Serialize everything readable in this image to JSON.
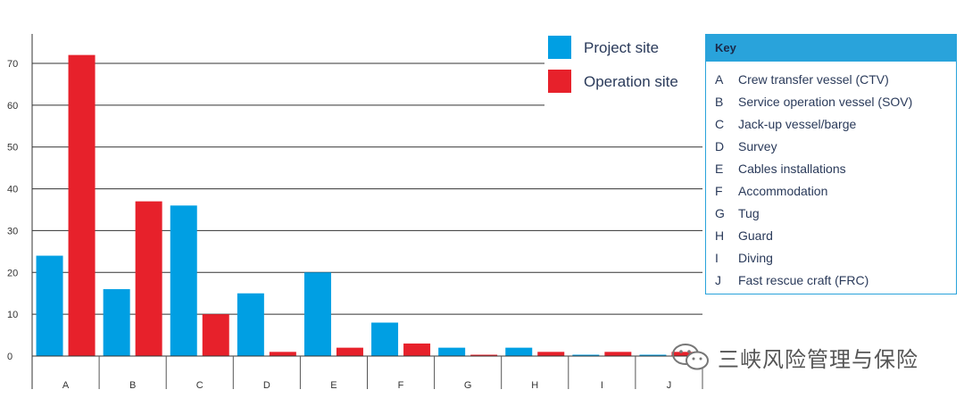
{
  "chart_data": {
    "type": "bar",
    "title": "",
    "xlabel": "",
    "ylabel": "",
    "ylim": [
      0,
      75
    ],
    "yticks": [
      0,
      10,
      20,
      30,
      40,
      50,
      60,
      70
    ],
    "categories": [
      "A",
      "B",
      "C",
      "D",
      "E",
      "F",
      "G",
      "H",
      "I",
      "J"
    ],
    "series": [
      {
        "name": "Project site",
        "color": "#009fe3",
        "values": [
          24,
          16,
          36,
          15,
          20,
          8,
          2,
          2,
          0,
          0
        ]
      },
      {
        "name": "Operation site",
        "color": "#e7212b",
        "values": [
          72,
          37,
          10,
          1,
          2,
          3,
          0,
          1,
          1,
          1
        ]
      }
    ],
    "grid": true,
    "legend_position": "top-right"
  },
  "key": {
    "title": "Key",
    "items": [
      {
        "letter": "A",
        "label": "Crew transfer vessel (CTV)"
      },
      {
        "letter": "B",
        "label": "Service operation vessel (SOV)"
      },
      {
        "letter": "C",
        "label": "Jack-up vessel/barge"
      },
      {
        "letter": "D",
        "label": "Survey"
      },
      {
        "letter": "E",
        "label": "Cables installations"
      },
      {
        "letter": "F",
        "label": "Accommodation"
      },
      {
        "letter": "G",
        "label": "Tug"
      },
      {
        "letter": "H",
        "label": "Guard"
      },
      {
        "letter": "I",
        "label": "Diving"
      },
      {
        "letter": "J",
        "label": "Fast rescue craft (FRC)"
      }
    ]
  },
  "watermark": {
    "text": "三峡风险管理与保险",
    "icon": "wechat-icon"
  }
}
